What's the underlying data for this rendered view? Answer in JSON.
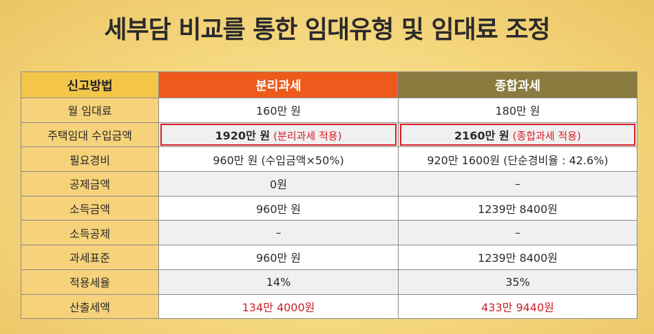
{
  "title": "세부담 비교를 통한 임대유형 및 임대료 조정",
  "colors": {
    "separate_header": "#ee5a1c",
    "combined_header": "#8a7a3e",
    "label_column": "#f6d27a",
    "highlight": "#d91e26",
    "tax_red": "#c8202a"
  },
  "table": {
    "headers": [
      "신고방법",
      "분리과세",
      "종합과세"
    ],
    "rows": [
      {
        "label": "월 임대료",
        "separate": "160만 원",
        "combined": "180만 원"
      },
      {
        "label": "주택임대 수입금액",
        "separate": "1920만 원",
        "separate_note": "(분리과세 적용)",
        "combined": "2160만 원",
        "combined_note": "(종합과세 적용)"
      },
      {
        "label": "필요경비",
        "separate": "960만 원 (수입금액×50%)",
        "combined": "920만 1600원 (단순경비율 : 42.6%)"
      },
      {
        "label": "공제금액",
        "separate": "0원",
        "combined": "–"
      },
      {
        "label": "소득금액",
        "separate": "960만 원",
        "combined": "1239만 8400원"
      },
      {
        "label": "소득공제",
        "separate": "–",
        "combined": "–"
      },
      {
        "label": "과세표준",
        "separate": "960만 원",
        "combined": "1239만 8400원"
      },
      {
        "label": "적용세율",
        "separate": "14%",
        "combined": "35%"
      },
      {
        "label": "산출세액",
        "separate": "134만 4000원",
        "combined": "433만 9440원"
      }
    ]
  }
}
